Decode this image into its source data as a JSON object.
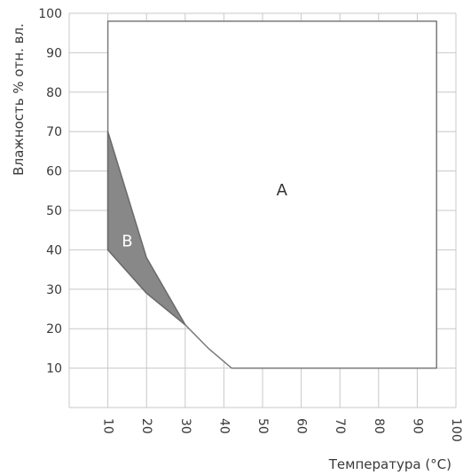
{
  "chart_data": {
    "type": "area",
    "xlabel": "Температура (°C)",
    "ylabel": "Влажность % отн. вл.",
    "xlim": [
      0,
      100
    ],
    "ylim": [
      0,
      100
    ],
    "x_ticks": [
      10,
      20,
      30,
      40,
      50,
      60,
      70,
      80,
      90,
      100
    ],
    "y_ticks": [
      10,
      20,
      30,
      40,
      50,
      60,
      70,
      80,
      90,
      100
    ],
    "grid": true,
    "regions": [
      {
        "name": "A",
        "fill": "#ffffff",
        "stroke": "#7a7a7a",
        "points": [
          [
            10,
            40
          ],
          [
            10,
            98
          ],
          [
            95,
            98
          ],
          [
            95,
            10
          ],
          [
            42,
            10
          ],
          [
            36,
            15
          ],
          [
            30,
            21
          ],
          [
            20,
            29
          ]
        ]
      },
      {
        "name": "B",
        "fill": "#888888",
        "stroke": "#6a6a6a",
        "points": [
          [
            10,
            70
          ],
          [
            10,
            40
          ],
          [
            20,
            29
          ],
          [
            30,
            21
          ],
          [
            20,
            38
          ]
        ]
      }
    ],
    "labels": [
      {
        "text": "A",
        "x": 55,
        "y": 55,
        "color": "#333333"
      },
      {
        "text": "B",
        "x": 15,
        "y": 42,
        "color": "#ffffff"
      }
    ]
  },
  "colors": {
    "grid": "#c8c8c8",
    "text": "#3a3a3a"
  }
}
